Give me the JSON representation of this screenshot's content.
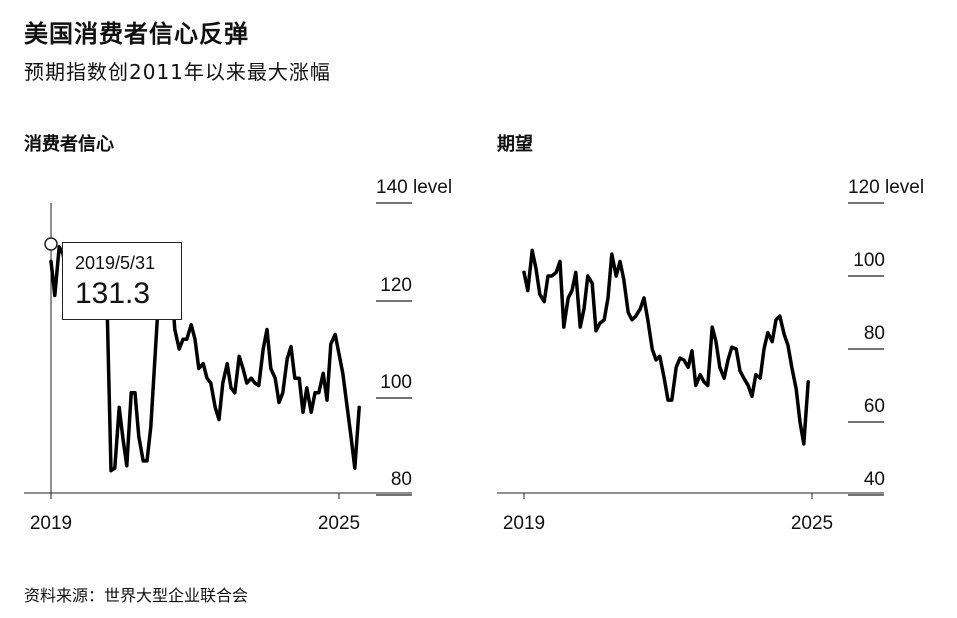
{
  "header": {
    "title": "美国消费者信心反弹",
    "subtitle": "预期指数创2011年以来最大涨幅"
  },
  "source": "资料来源：世界大型企业联合会",
  "tooltip": {
    "date": "2019/5/31",
    "value": "131.3"
  },
  "chart_data": [
    {
      "type": "line",
      "title": "消费者信心",
      "unit_label": "level",
      "ylim": [
        75,
        140
      ],
      "y_ticks": [
        {
          "value": 140,
          "label": "140 level"
        },
        {
          "value": 120,
          "label": "120"
        },
        {
          "value": 100,
          "label": "100"
        },
        {
          "value": 80,
          "label": "80"
        }
      ],
      "x_ticks": [
        "2019",
        "2025"
      ],
      "series": [
        {
          "values": [
            [
              2019.0,
              128
            ],
            [
              2019.08,
              121
            ],
            [
              2019.17,
              131
            ],
            [
              2019.25,
              129.5
            ],
            [
              2019.33,
              125
            ],
            [
              2019.42,
              131.3
            ],
            [
              2019.5,
              127
            ],
            [
              2019.58,
              125
            ],
            [
              2019.67,
              126
            ],
            [
              2019.75,
              126
            ],
            [
              2019.83,
              128
            ],
            [
              2019.92,
              127
            ],
            [
              2020.0,
              129
            ],
            [
              2020.08,
              130.5
            ],
            [
              2020.17,
              118
            ],
            [
              2020.25,
              85
            ],
            [
              2020.33,
              85.5
            ],
            [
              2020.42,
              98
            ],
            [
              2020.5,
              91.5
            ],
            [
              2020.58,
              86
            ],
            [
              2020.67,
              101
            ],
            [
              2020.75,
              101
            ],
            [
              2020.83,
              92
            ],
            [
              2020.92,
              87
            ],
            [
              2021.0,
              87
            ],
            [
              2021.08,
              94
            ],
            [
              2021.17,
              109
            ],
            [
              2021.25,
              122
            ],
            [
              2021.33,
              120
            ],
            [
              2021.42,
              128
            ],
            [
              2021.5,
              125
            ],
            [
              2021.58,
              114
            ],
            [
              2021.67,
              110
            ],
            [
              2021.75,
              112
            ],
            [
              2021.83,
              112
            ],
            [
              2021.92,
              115
            ],
            [
              2022.0,
              112
            ],
            [
              2022.08,
              106
            ],
            [
              2022.17,
              107
            ],
            [
              2022.25,
              104
            ],
            [
              2022.33,
              103
            ],
            [
              2022.42,
              98
            ],
            [
              2022.5,
              95.5
            ],
            [
              2022.58,
              103
            ],
            [
              2022.67,
              107
            ],
            [
              2022.75,
              102
            ],
            [
              2022.83,
              101
            ],
            [
              2022.92,
              108.5
            ],
            [
              2023.0,
              106
            ],
            [
              2023.08,
              103
            ],
            [
              2023.17,
              104
            ],
            [
              2023.25,
              103
            ],
            [
              2023.33,
              102.5
            ],
            [
              2023.42,
              110
            ],
            [
              2023.5,
              114
            ],
            [
              2023.58,
              106
            ],
            [
              2023.67,
              104
            ],
            [
              2023.75,
              99
            ],
            [
              2023.83,
              101
            ],
            [
              2023.92,
              108
            ],
            [
              2024.0,
              110.5
            ],
            [
              2024.08,
              104
            ],
            [
              2024.17,
              104
            ],
            [
              2024.25,
              97
            ],
            [
              2024.33,
              102
            ],
            [
              2024.42,
              97
            ],
            [
              2024.5,
              101
            ],
            [
              2024.58,
              101
            ],
            [
              2024.67,
              105
            ],
            [
              2024.75,
              99.5
            ],
            [
              2024.83,
              111
            ],
            [
              2024.92,
              113
            ],
            [
              2025.0,
              109
            ],
            [
              2025.08,
              105
            ],
            [
              2025.17,
              98
            ],
            [
              2025.25,
              92
            ],
            [
              2025.33,
              85.5
            ],
            [
              2025.42,
              98
            ]
          ]
        }
      ]
    },
    {
      "type": "line",
      "title": "期望",
      "unit_label": "level",
      "ylim": [
        35,
        120
      ],
      "y_ticks": [
        {
          "value": 120,
          "label": "120 level"
        },
        {
          "value": 100,
          "label": "100"
        },
        {
          "value": 80,
          "label": "80"
        },
        {
          "value": 60,
          "label": "60"
        },
        {
          "value": 40,
          "label": "40"
        }
      ],
      "x_ticks": [
        "2019",
        "2025"
      ],
      "series": [
        {
          "values": [
            [
              2019.0,
              101
            ],
            [
              2019.08,
              96
            ],
            [
              2019.17,
              107
            ],
            [
              2019.25,
              102
            ],
            [
              2019.33,
              95
            ],
            [
              2019.42,
              93
            ],
            [
              2019.5,
              100
            ],
            [
              2019.58,
              100
            ],
            [
              2019.67,
              101
            ],
            [
              2019.75,
              104
            ],
            [
              2019.83,
              86
            ],
            [
              2019.92,
              94
            ],
            [
              2020.0,
              96
            ],
            [
              2020.08,
              101
            ],
            [
              2020.17,
              86
            ],
            [
              2020.25,
              91
            ],
            [
              2020.33,
              100
            ],
            [
              2020.42,
              98
            ],
            [
              2020.5,
              85
            ],
            [
              2020.58,
              87
            ],
            [
              2020.67,
              88
            ],
            [
              2020.75,
              94
            ],
            [
              2020.83,
              106
            ],
            [
              2020.92,
              100
            ],
            [
              2021.0,
              104
            ],
            [
              2021.08,
              99
            ],
            [
              2021.17,
              90
            ],
            [
              2021.25,
              88
            ],
            [
              2021.33,
              89
            ],
            [
              2021.42,
              91
            ],
            [
              2021.5,
              94
            ],
            [
              2021.58,
              88
            ],
            [
              2021.67,
              80
            ],
            [
              2021.75,
              77
            ],
            [
              2021.83,
              78
            ],
            [
              2021.92,
              72
            ],
            [
              2022.0,
              66
            ],
            [
              2022.08,
              66
            ],
            [
              2022.17,
              75
            ],
            [
              2022.25,
              77.5
            ],
            [
              2022.33,
              77
            ],
            [
              2022.42,
              75
            ],
            [
              2022.5,
              79.5
            ],
            [
              2022.58,
              70
            ],
            [
              2022.67,
              73
            ],
            [
              2022.75,
              71
            ],
            [
              2022.83,
              70
            ],
            [
              2022.92,
              86
            ],
            [
              2023.0,
              82
            ],
            [
              2023.08,
              75
            ],
            [
              2023.17,
              72
            ],
            [
              2023.25,
              77
            ],
            [
              2023.33,
              80.5
            ],
            [
              2023.42,
              80
            ],
            [
              2023.5,
              74
            ],
            [
              2023.58,
              72
            ],
            [
              2023.67,
              70
            ],
            [
              2023.75,
              67
            ],
            [
              2023.83,
              73
            ],
            [
              2023.92,
              72
            ],
            [
              2024.0,
              80
            ],
            [
              2024.08,
              84.5
            ],
            [
              2024.17,
              82
            ],
            [
              2024.25,
              88
            ],
            [
              2024.33,
              89
            ],
            [
              2024.42,
              84
            ],
            [
              2024.5,
              81
            ],
            [
              2024.58,
              75
            ],
            [
              2024.67,
              69
            ],
            [
              2024.75,
              60
            ],
            [
              2024.83,
              54
            ],
            [
              2024.92,
              71
            ]
          ]
        }
      ]
    }
  ]
}
